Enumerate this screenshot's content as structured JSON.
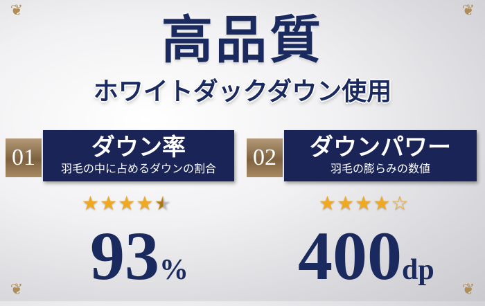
{
  "title": "高品質",
  "subtitle": "ホワイトダックダウン使用",
  "features": [
    {
      "number": "01",
      "heading": "ダウン率",
      "description": "羽毛の中に占めるダウンの割合",
      "rating": 4.5,
      "rating_max": 5,
      "value": "93",
      "unit": "%"
    },
    {
      "number": "02",
      "heading": "ダウンパワー",
      "description": "羽毛の膨らみの数値",
      "rating": 4,
      "rating_max": 5,
      "value": "400",
      "unit": "dp"
    }
  ],
  "colors": {
    "navy": "#1a2456",
    "gold": "#8c6e48",
    "star": "#f0a820"
  }
}
